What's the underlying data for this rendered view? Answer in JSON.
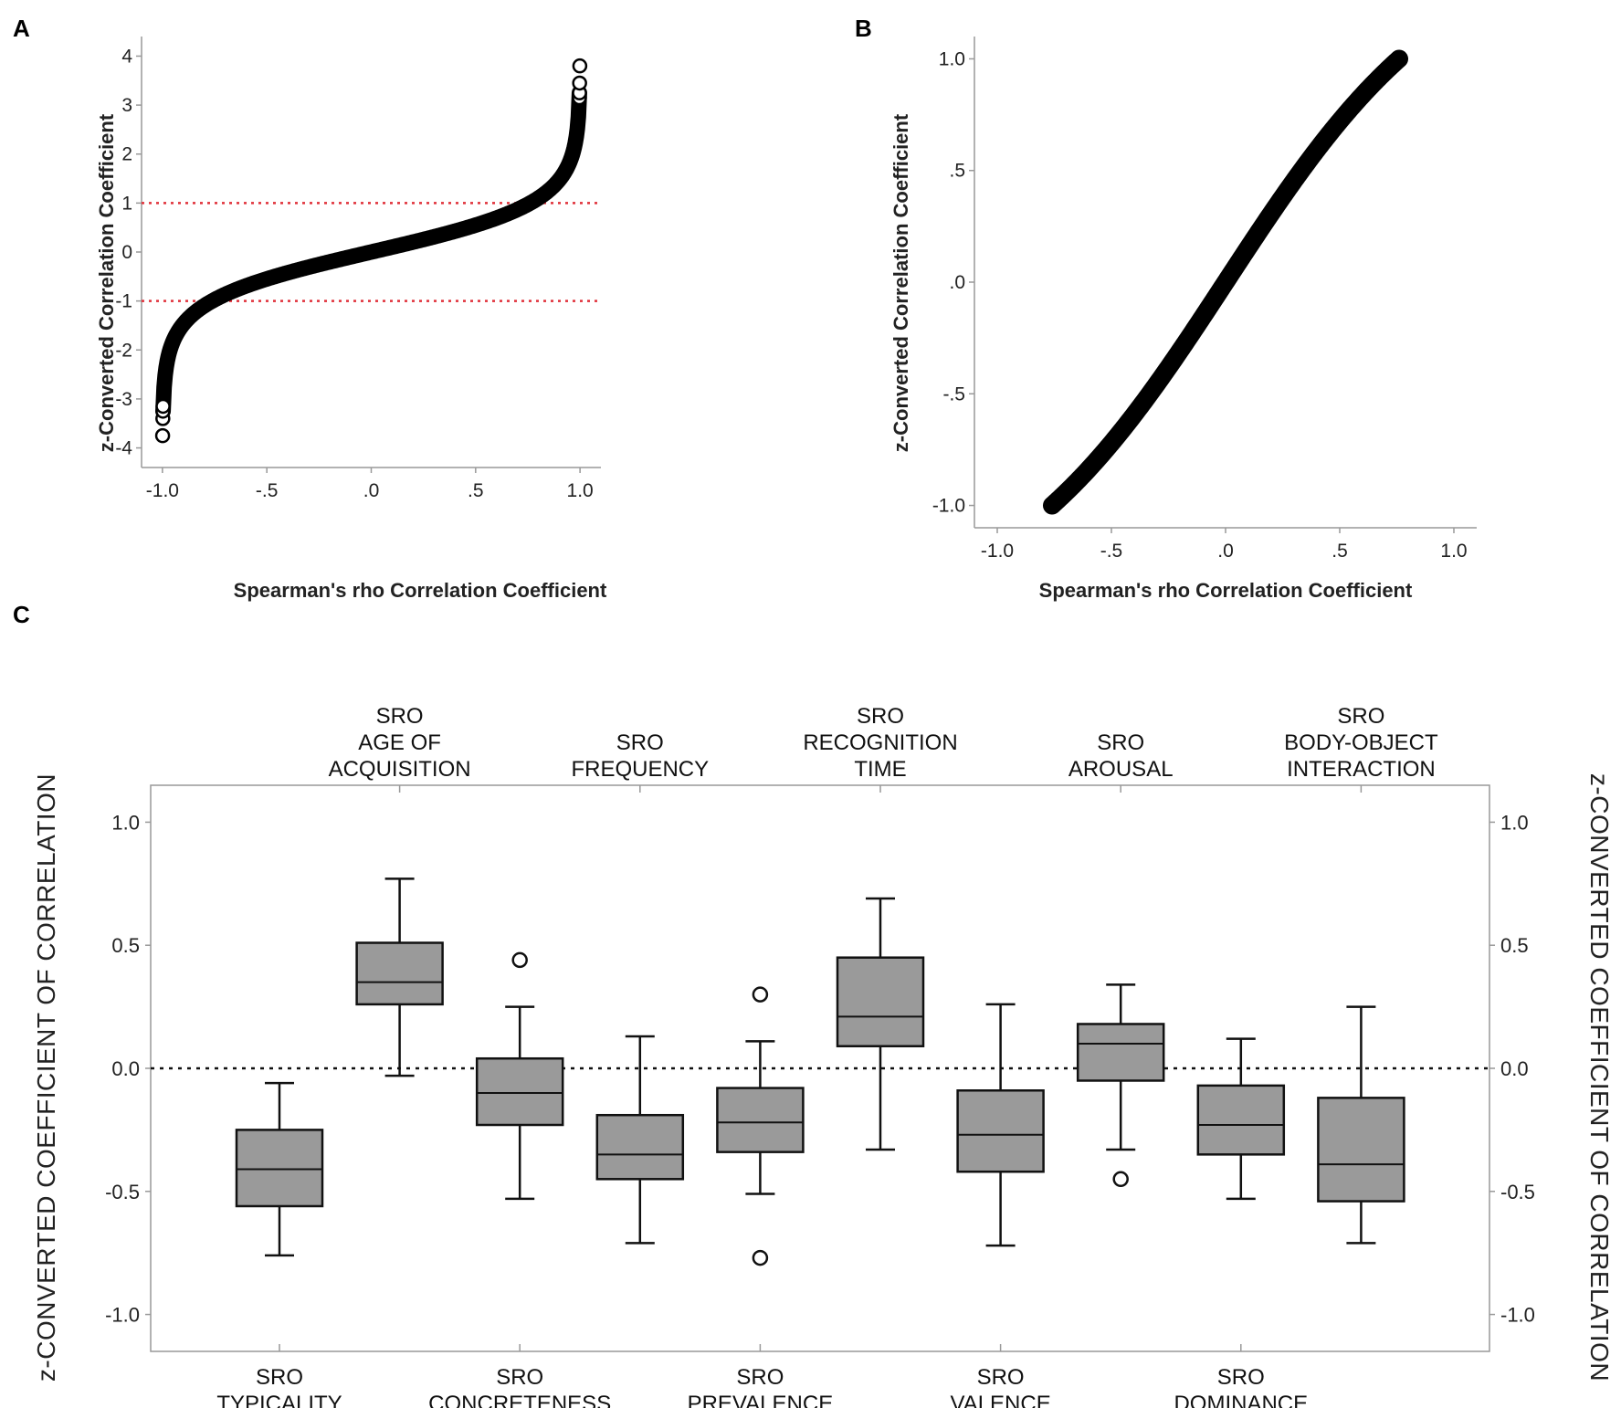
{
  "panels": {
    "a": "A",
    "b": "B",
    "c": "C"
  },
  "colors": {
    "ref_line": "#e0303a",
    "box_fill": "#9a9a9a",
    "axis": "#999999",
    "mark": "#000000"
  },
  "chart_data": [
    {
      "type": "scatter",
      "panel": "A",
      "xlabel": "Spearman's rho Correlation Coefficient",
      "ylabel": "z-Converted Correlation Coefficient",
      "xlim": [
        -1.1,
        1.1
      ],
      "ylim": [
        -4.4,
        4.4
      ],
      "x_ticks": [
        -1.0,
        -0.5,
        0.0,
        0.5,
        1.0
      ],
      "x_tick_labels": [
        "-1.0",
        "-.5",
        ".0",
        ".5",
        "1.0"
      ],
      "y_ticks": [
        4,
        3,
        2,
        1,
        0,
        -1,
        -2,
        -3,
        -4
      ],
      "y_tick_labels": [
        "4",
        "3",
        "2",
        "1",
        "0",
        "-1",
        "-2",
        "-3",
        "-4"
      ],
      "reference_lines_y": [
        1,
        -1
      ],
      "curve": "z = atanh(r)",
      "sample_points": [
        {
          "x": -0.9991,
          "y": -3.75
        },
        {
          "x": -0.998,
          "y": -3.4
        },
        {
          "x": -0.9975,
          "y": -3.25
        },
        {
          "x": -0.997,
          "y": -3.15
        },
        {
          "x": 0.997,
          "y": 3.15
        },
        {
          "x": 0.9975,
          "y": 3.25
        },
        {
          "x": 0.998,
          "y": 3.45
        },
        {
          "x": 0.999,
          "y": 3.8
        }
      ]
    },
    {
      "type": "scatter",
      "panel": "B",
      "xlabel": "Spearman's rho Correlation Coefficient",
      "ylabel": "z-Converted Correlation Coefficient",
      "xlim": [
        -1.1,
        1.1
      ],
      "ylim": [
        -1.1,
        1.1
      ],
      "x_ticks": [
        -1.0,
        -0.5,
        0.0,
        0.5,
        1.0
      ],
      "x_tick_labels": [
        "-1.0",
        "-.5",
        ".0",
        ".5",
        "1.0"
      ],
      "y_ticks": [
        1.0,
        0.5,
        0.0,
        -0.5,
        -1.0
      ],
      "y_tick_labels": [
        "1.0",
        ".5",
        ".0",
        "-.5",
        "-1.0"
      ],
      "x_range": [
        -0.76,
        0.76
      ],
      "curve": "r = tanh(z)"
    },
    {
      "type": "box",
      "panel": "C",
      "ylabel": "z-CONVERTED COEFFICIENT OF CORRELATION",
      "ylim": [
        -1.15,
        1.15
      ],
      "y_ticks": [
        1.0,
        0.5,
        0.0,
        -0.5,
        -1.0
      ],
      "y_tick_labels": [
        "1.0",
        "0.5",
        "0.0",
        "-0.5",
        "-1.0"
      ],
      "reference_line_y": 0.0,
      "categories": [
        {
          "label": [
            "SRO",
            "TYPICALITY"
          ],
          "axis": "bottom",
          "whisker_low": -0.76,
          "q1": -0.56,
          "median": -0.41,
          "q3": -0.25,
          "whisker_high": -0.06,
          "outliers": []
        },
        {
          "label": [
            "SRO",
            "AGE OF",
            "ACQUISITION"
          ],
          "axis": "top",
          "whisker_low": -0.03,
          "q1": 0.26,
          "median": 0.35,
          "q3": 0.51,
          "whisker_high": 0.77,
          "outliers": []
        },
        {
          "label": [
            "SRO",
            "CONCRETENESS"
          ],
          "axis": "bottom",
          "whisker_low": -0.53,
          "q1": -0.23,
          "median": -0.1,
          "q3": 0.04,
          "whisker_high": 0.25,
          "outliers": [
            0.44
          ]
        },
        {
          "label": [
            "SRO",
            "FREQUENCY"
          ],
          "axis": "top",
          "whisker_low": -0.71,
          "q1": -0.45,
          "median": -0.35,
          "q3": -0.19,
          "whisker_high": 0.13,
          "outliers": []
        },
        {
          "label": [
            "SRO",
            "PREVALENCE"
          ],
          "axis": "bottom",
          "whisker_low": -0.51,
          "q1": -0.34,
          "median": -0.22,
          "q3": -0.08,
          "whisker_high": 0.11,
          "outliers": [
            0.3,
            -0.77
          ]
        },
        {
          "label": [
            "SRO",
            "RECOGNITION",
            "TIME"
          ],
          "axis": "top",
          "whisker_low": -0.33,
          "q1": 0.09,
          "median": 0.21,
          "q3": 0.45,
          "whisker_high": 0.69,
          "outliers": []
        },
        {
          "label": [
            "SRO",
            "VALENCE"
          ],
          "axis": "bottom",
          "whisker_low": -0.72,
          "q1": -0.42,
          "median": -0.27,
          "q3": -0.09,
          "whisker_high": 0.26,
          "outliers": []
        },
        {
          "label": [
            "SRO",
            "AROUSAL"
          ],
          "axis": "top",
          "whisker_low": -0.33,
          "q1": -0.05,
          "median": 0.1,
          "q3": 0.18,
          "whisker_high": 0.34,
          "outliers": [
            -0.45
          ]
        },
        {
          "label": [
            "SRO",
            "DOMINANCE"
          ],
          "axis": "bottom",
          "whisker_low": -0.53,
          "q1": -0.35,
          "median": -0.23,
          "q3": -0.07,
          "whisker_high": 0.12,
          "outliers": []
        },
        {
          "label": [
            "SRO",
            "BODY-OBJECT",
            "INTERACTION"
          ],
          "axis": "top",
          "whisker_low": -0.71,
          "q1": -0.54,
          "median": -0.39,
          "q3": -0.12,
          "whisker_high": 0.25,
          "outliers": []
        }
      ]
    }
  ]
}
